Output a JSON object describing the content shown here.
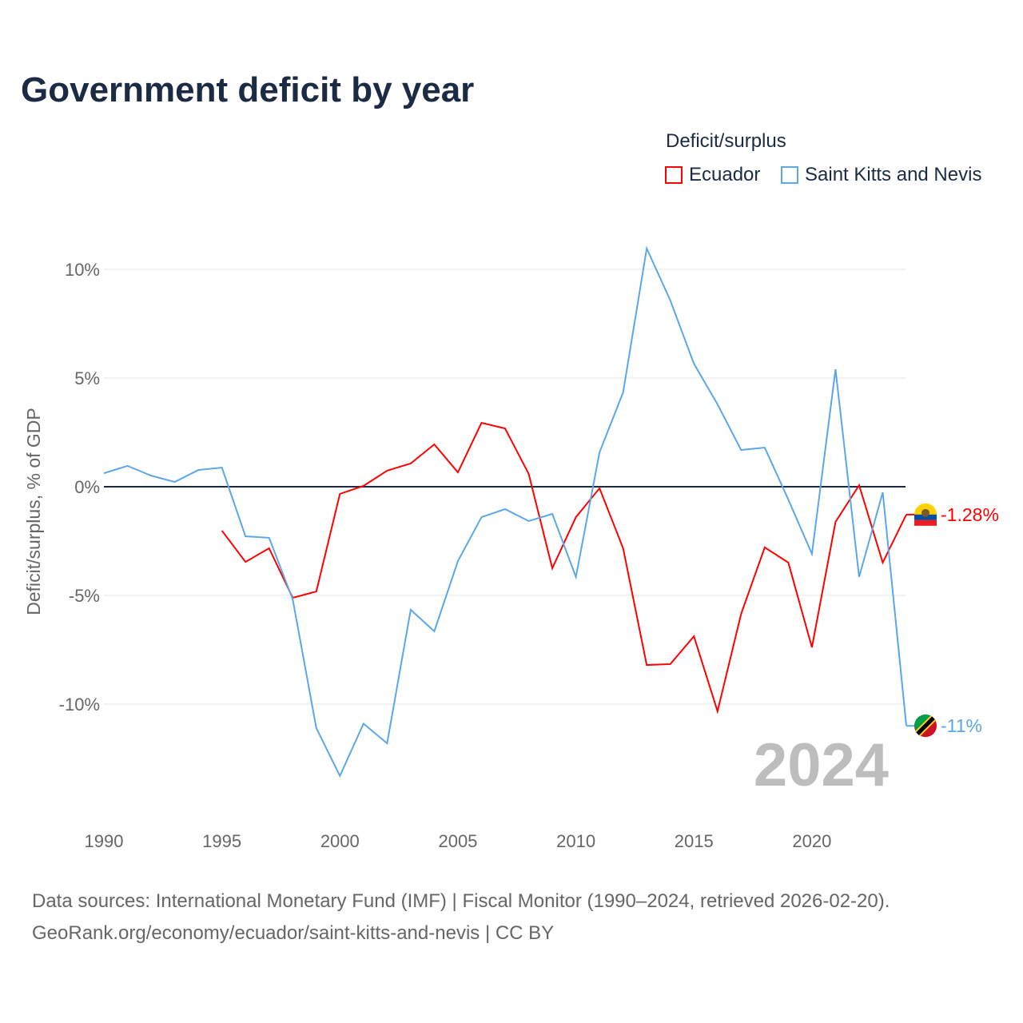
{
  "chart_data": {
    "type": "line",
    "title": "Government deficit by year",
    "xlabel": "",
    "ylabel": "Deficit/surplus, % of GDP",
    "legend_title": "Deficit/surplus",
    "legend_position": "top-right",
    "year_watermark": "2024",
    "xlim": [
      1990,
      2024
    ],
    "ylim": [
      -14.7,
      11.5
    ],
    "x_ticks": [
      1990,
      1995,
      2000,
      2005,
      2010,
      2015,
      2020
    ],
    "x_tick_labels": [
      "1990",
      "1995",
      "2000",
      "2005",
      "2010",
      "2015",
      "2020"
    ],
    "y_ticks": [
      10,
      5,
      0,
      -5,
      -10
    ],
    "y_tick_labels": [
      "10%",
      "5%",
      "0%",
      "-5%",
      "-10%"
    ],
    "grid": true,
    "series": [
      {
        "name": "Ecuador",
        "color": "#ff0000",
        "end_label": "-1.28%",
        "x": [
          1995,
          1996,
          1997,
          1998,
          1999,
          2000,
          2001,
          2002,
          2003,
          2004,
          2005,
          2006,
          2007,
          2008,
          2009,
          2010,
          2011,
          2012,
          2013,
          2014,
          2015,
          2016,
          2017,
          2018,
          2019,
          2020,
          2021,
          2022,
          2023,
          2024
        ],
        "values": [
          -2.02,
          -3.46,
          -2.83,
          -5.11,
          -4.82,
          -0.33,
          0.04,
          0.74,
          1.07,
          1.95,
          0.66,
          2.94,
          2.68,
          0.59,
          -3.75,
          -1.4,
          -0.07,
          -2.83,
          -8.2,
          -8.16,
          -6.88,
          -10.33,
          -5.85,
          -2.79,
          -3.49,
          -7.39,
          -1.62,
          0.07,
          -3.49,
          -1.28
        ]
      },
      {
        "name": "Saint Kitts and Nevis",
        "color": "#5ba7e8",
        "end_label": "-11%",
        "x": [
          1990,
          1991,
          1992,
          1993,
          1994,
          1995,
          1996,
          1997,
          1998,
          1999,
          2000,
          2001,
          2002,
          2003,
          2004,
          2005,
          2006,
          2007,
          2008,
          2009,
          2010,
          2011,
          2012,
          2013,
          2014,
          2015,
          2016,
          2017,
          2018,
          2019,
          2020,
          2021,
          2022,
          2023,
          2024
        ],
        "values": [
          0.62,
          0.96,
          0.51,
          0.22,
          0.77,
          0.88,
          -2.28,
          -2.35,
          -5.18,
          -11.1,
          -13.3,
          -10.9,
          -11.8,
          -5.66,
          -6.65,
          -3.42,
          -1.4,
          -1.03,
          -1.58,
          -1.25,
          -4.15,
          1.58,
          4.34,
          10.96,
          8.57,
          5.66,
          3.79,
          1.69,
          1.8,
          -0.59,
          -3.09,
          5.4,
          -4.15,
          -0.26,
          -11.0
        ]
      }
    ]
  },
  "source": {
    "line1": "Data sources: International Monetary Fund (IMF) | Fiscal Monitor (1990–2024, retrieved 2026-02-20).",
    "line2": "GeoRank.org/economy/ecuador/saint-kitts-and-nevis | CC BY"
  }
}
